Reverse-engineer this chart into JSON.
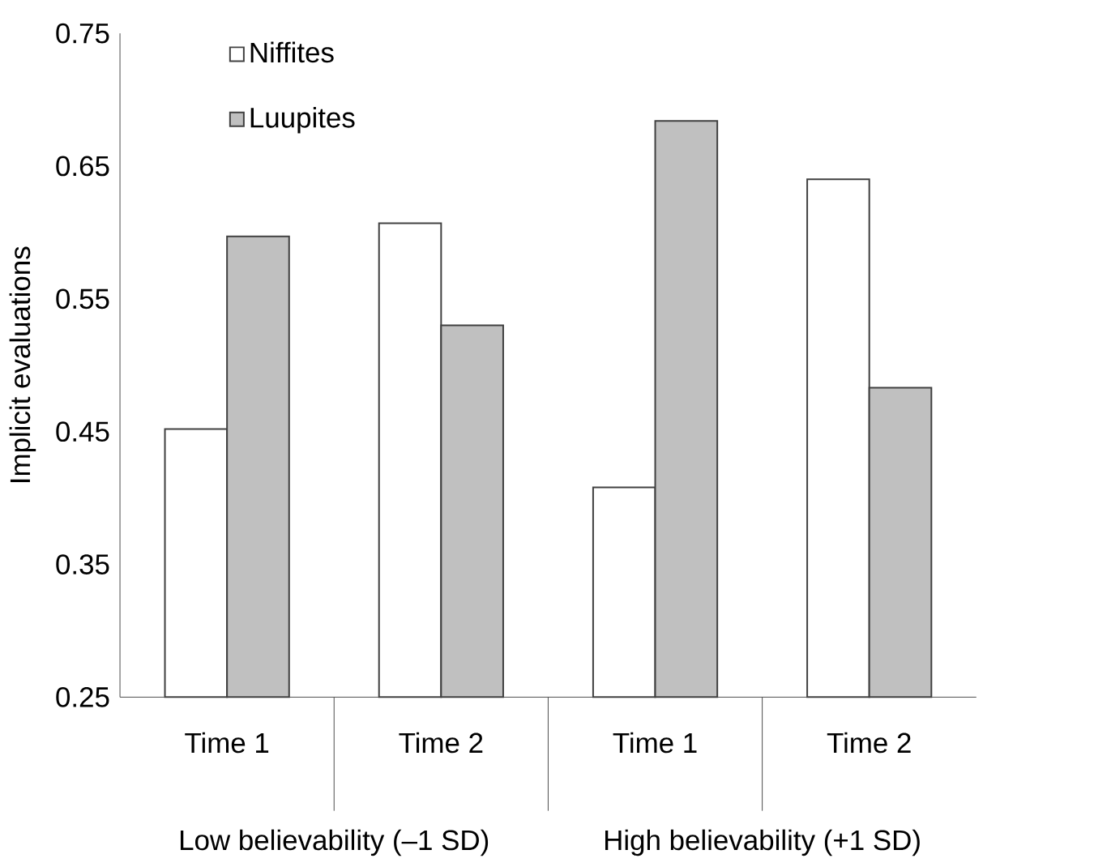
{
  "chart_data": {
    "type": "bar",
    "ylabel": "Implicit evaluations",
    "categories": [
      "Time 1",
      "Time 2",
      "Time 1",
      "Time 2"
    ],
    "series": [
      {
        "name": "Niffites",
        "color": "#ffffff",
        "values": [
          0.452,
          0.607,
          0.408,
          0.64
        ]
      },
      {
        "name": "Luupites",
        "color": "#c0c0c0",
        "values": [
          0.597,
          0.53,
          0.684,
          0.483
        ]
      }
    ],
    "ylim": [
      0.25,
      0.75
    ],
    "yticks": [
      0.25,
      0.35,
      0.45,
      0.55,
      0.65,
      0.75
    ],
    "legend": "top left",
    "annotations": [
      "Low believability (–1 SD)",
      "High believability (+1 SD)"
    ]
  }
}
